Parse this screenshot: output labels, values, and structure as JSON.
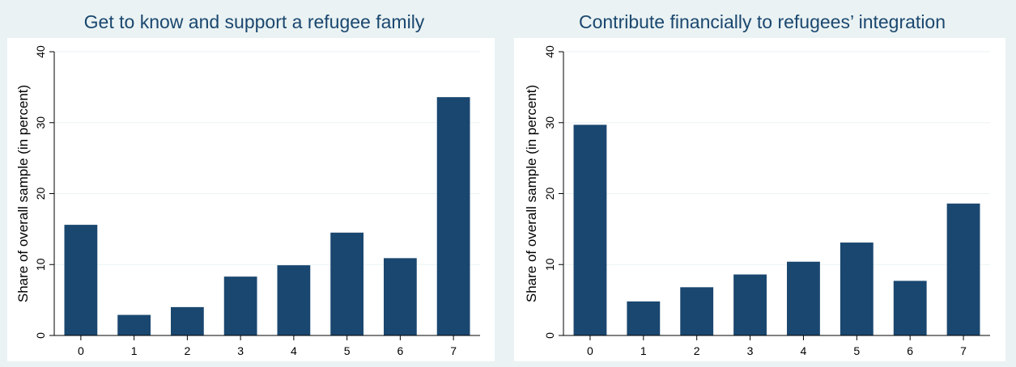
{
  "chart_data": [
    {
      "type": "bar",
      "title": "Get to know and support a refugee family",
      "ylabel": "Share of overall sample (in percent)",
      "xlabel": "",
      "categories": [
        "0",
        "1",
        "2",
        "3",
        "4",
        "5",
        "6",
        "7"
      ],
      "values": [
        15.6,
        2.9,
        4.0,
        8.3,
        9.9,
        14.5,
        10.9,
        33.6
      ],
      "ylim": [
        0,
        40
      ],
      "yticks": [
        0,
        10,
        20,
        30,
        40
      ],
      "grid": true,
      "bar_color": "#1a476f"
    },
    {
      "type": "bar",
      "title": "Contribute financially to refugees’ integration",
      "ylabel": "Share of overall sample (in percent)",
      "xlabel": "",
      "categories": [
        "0",
        "1",
        "2",
        "3",
        "4",
        "5",
        "6",
        "7"
      ],
      "values": [
        29.7,
        4.8,
        6.8,
        8.6,
        10.4,
        13.1,
        7.7,
        18.6
      ],
      "ylim": [
        0,
        40
      ],
      "yticks": [
        0,
        10,
        20,
        30,
        40
      ],
      "grid": true,
      "bar_color": "#1a476f"
    }
  ]
}
